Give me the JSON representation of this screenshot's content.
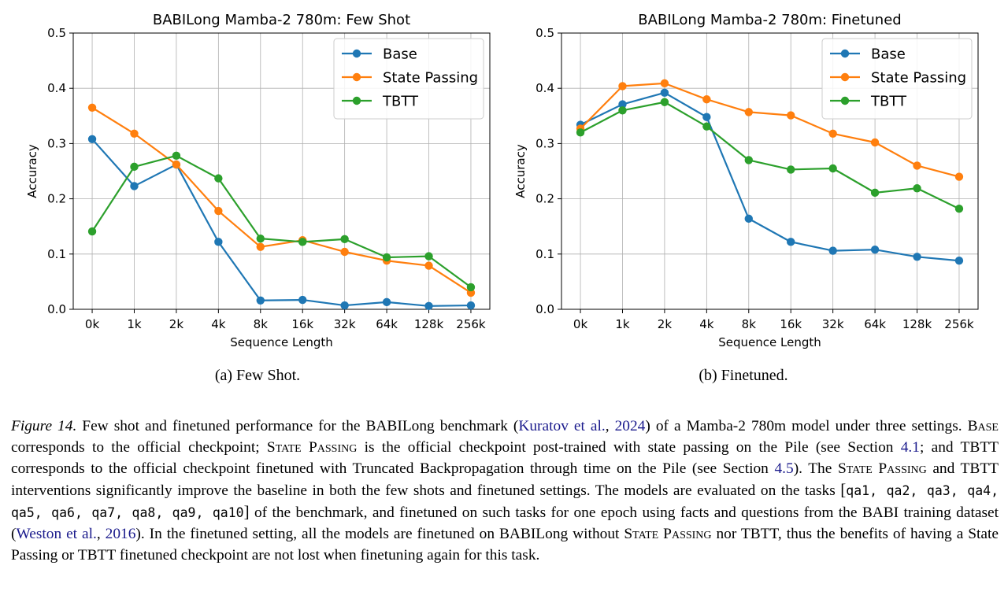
{
  "chart_data": [
    {
      "type": "line",
      "title": "BABILong Mamba-2 780m: Few Shot",
      "xlabel": "Sequence Length",
      "ylabel": "Accuracy",
      "categories": [
        "0k",
        "1k",
        "2k",
        "4k",
        "8k",
        "16k",
        "32k",
        "64k",
        "128k",
        "256k"
      ],
      "ylim": [
        0.0,
        0.5
      ],
      "yticks": [
        "0.0",
        "0.1",
        "0.2",
        "0.3",
        "0.4",
        "0.5"
      ],
      "grid": true,
      "legend_position": "top-right",
      "series": [
        {
          "name": "Base",
          "color": "#1f77b4",
          "values": [
            0.308,
            0.223,
            0.262,
            0.122,
            0.016,
            0.017,
            0.007,
            0.013,
            0.006,
            0.007
          ]
        },
        {
          "name": "State Passing",
          "color": "#ff7f0e",
          "values": [
            0.365,
            0.318,
            0.262,
            0.178,
            0.113,
            0.125,
            0.104,
            0.088,
            0.079,
            0.03
          ]
        },
        {
          "name": "TBTT",
          "color": "#2ca02c",
          "values": [
            0.141,
            0.258,
            0.278,
            0.237,
            0.128,
            0.122,
            0.127,
            0.094,
            0.096,
            0.04
          ]
        }
      ]
    },
    {
      "type": "line",
      "title": "BABILong Mamba-2 780m: Finetuned",
      "xlabel": "Sequence Length",
      "ylabel": "Accuracy",
      "categories": [
        "0k",
        "1k",
        "2k",
        "4k",
        "8k",
        "16k",
        "32k",
        "64k",
        "128k",
        "256k"
      ],
      "ylim": [
        0.0,
        0.5
      ],
      "yticks": [
        "0.0",
        "0.1",
        "0.2",
        "0.3",
        "0.4",
        "0.5"
      ],
      "grid": true,
      "legend_position": "top-right",
      "series": [
        {
          "name": "Base",
          "color": "#1f77b4",
          "values": [
            0.334,
            0.371,
            0.392,
            0.348,
            0.164,
            0.122,
            0.106,
            0.108,
            0.095,
            0.088
          ]
        },
        {
          "name": "State Passing",
          "color": "#ff7f0e",
          "values": [
            0.327,
            0.404,
            0.409,
            0.38,
            0.357,
            0.351,
            0.318,
            0.302,
            0.26,
            0.24
          ]
        },
        {
          "name": "TBTT",
          "color": "#2ca02c",
          "values": [
            0.32,
            0.36,
            0.375,
            0.331,
            0.27,
            0.253,
            0.255,
            0.211,
            0.219,
            0.182
          ]
        }
      ]
    }
  ],
  "subcaptions": {
    "a": "(a) Few Shot.",
    "b": "(b) Finetuned."
  },
  "caption": {
    "label": "Figure 14.",
    "t1": " Few shot and finetuned performance for the BABILong benchmark (",
    "cite1": "Kuratov et al.",
    "t2": ", ",
    "cite1_year": "2024",
    "t3": ") of a Mamba-2 780m model under three settings. ",
    "base": "Base",
    "t4": " corresponds to the official checkpoint; ",
    "state_passing_1": "State Passing",
    "t5": " is the official checkpoint post-trained with state passing on the Pile (see Section ",
    "sec1": "4.1",
    "t6": "; and TBTT corresponds to the official checkpoint finetuned with Truncated Backpropagation through time on the Pile (see Section ",
    "sec2": "4.5",
    "t7": "). The ",
    "state_passing_2": "State Passing",
    "t8": " and TBTT interventions significantly improve the baseline in both the few shots and finetuned settings. The models are evaluated on the tasks ",
    "bracket_open": "[",
    "tasks": "qa1, qa2, qa3, qa4, qa5, qa6, qa7, qa8, qa9, qa10",
    "bracket_close": "]",
    "t9": " of the benchmark, and finetuned on such tasks for one epoch using facts and questions from the BABI training dataset (",
    "cite2": "Weston et al.",
    "t10": ", ",
    "cite2_year": "2016",
    "t11": "). In the finetuned setting, all the models are finetuned on BABILong without ",
    "state_passing_3": "State Passing",
    "t12": " nor TBTT, thus the benefits of having a State Passing or TBTT finetuned checkpoint are not lost when finetuning again for this task."
  }
}
